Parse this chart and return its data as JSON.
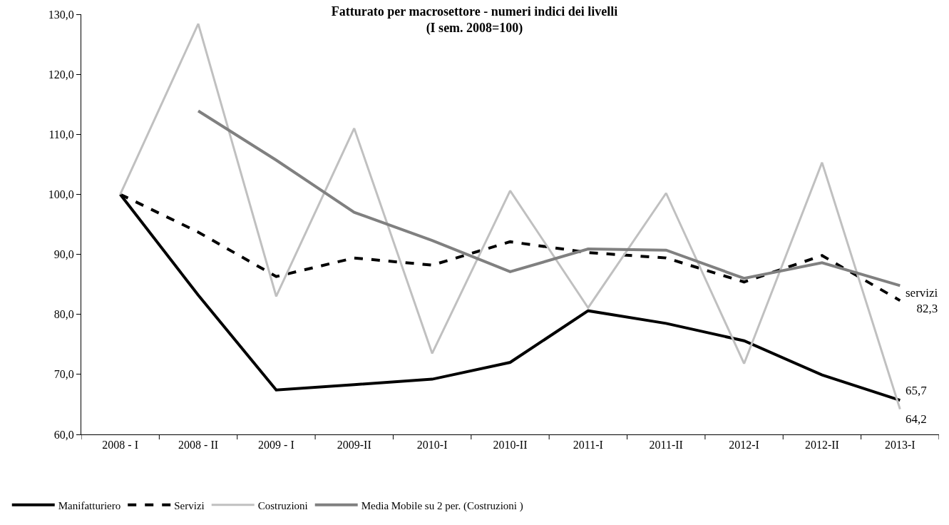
{
  "chart_data": {
    "type": "line",
    "title": "Fatturato per macrosettore - numeri indici dei livelli\n(I sem. 2008=100)",
    "categories": [
      "2008 - I",
      "2008 - II",
      "2009 - I",
      "2009-II",
      "2010-I",
      "2010-II",
      "2011-I",
      "2011-II",
      "2012-I",
      "2012-II",
      "2013-I"
    ],
    "series": [
      {
        "name": "Manifatturiero",
        "color": "#000000",
        "line_style": "solid",
        "values": [
          100,
          83.2,
          67.4,
          68.3,
          69.2,
          72.0,
          80.6,
          78.5,
          75.6,
          69.9,
          65.7
        ]
      },
      {
        "name": "Servizi",
        "color": "#000000",
        "line_style": "dashed",
        "values": [
          100,
          93.7,
          86.3,
          89.4,
          88.2,
          92.1,
          90.3,
          89.4,
          85.4,
          89.8,
          82.3
        ]
      },
      {
        "name": "Costruzioni",
        "color": "#c0c0c0",
        "line_style": "solid",
        "values": [
          100,
          128.4,
          83.0,
          111.0,
          73.5,
          100.6,
          81.1,
          100.2,
          71.8,
          105.3,
          64.2
        ]
      },
      {
        "name": "Media Mobile su 2 per. (Costruzioni )",
        "color": "#808080",
        "line_style": "solid",
        "values": [
          null,
          113.9,
          105.7,
          97.0,
          92.3,
          87.1,
          90.9,
          90.7,
          86.0,
          88.6,
          84.8
        ]
      }
    ],
    "ylim": [
      60,
      130
    ],
    "yticks": [
      {
        "value": 60,
        "label": "60,0"
      },
      {
        "value": 70,
        "label": "70,0"
      },
      {
        "value": 80,
        "label": "80,0"
      },
      {
        "value": 90,
        "label": "90,0"
      },
      {
        "value": 100,
        "label": "100,0"
      },
      {
        "value": 110,
        "label": "110,0"
      },
      {
        "value": 120,
        "label": "120,0"
      },
      {
        "value": 130,
        "label": "130,0"
      }
    ],
    "annotations": [
      {
        "text": "servizi\n82,3",
        "x": "2013-I",
        "y": 82.3
      },
      {
        "text": "65,7",
        "x": "2013-I",
        "y": 65.7
      },
      {
        "text": "64,2",
        "x": "2013-I",
        "y": 64.2
      }
    ],
    "legend": "bottom",
    "marker": "none"
  }
}
